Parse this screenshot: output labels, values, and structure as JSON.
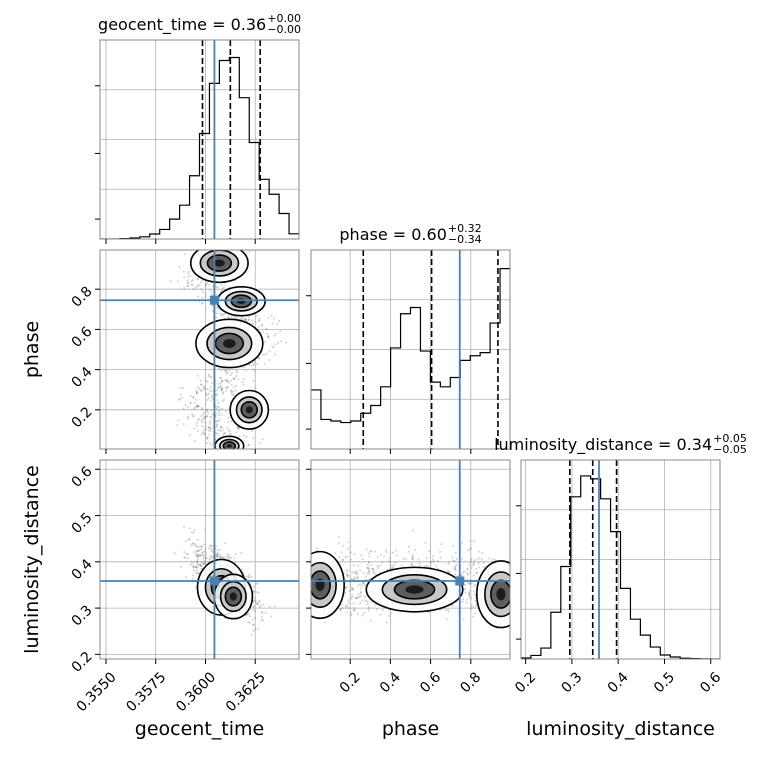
{
  "chart_data": {
    "type": "corner",
    "params": [
      "geocent_time",
      "phase",
      "luminosity_distance"
    ],
    "grid": true,
    "truth_color": "#4682b4",
    "truths": {
      "geocent_time": 0.36045,
      "phase": 0.745,
      "luminosity_distance": 0.3585
    },
    "ranges": {
      "geocent_time": [
        0.3547,
        0.3647
      ],
      "phase": [
        0.005,
        0.995
      ],
      "luminosity_distance": [
        0.19,
        0.62
      ]
    },
    "ticks": {
      "geocent_time": {
        "values": [
          0.355,
          0.3575,
          0.36,
          0.3625
        ],
        "labels": [
          "0.3550",
          "0.3575",
          "0.3600",
          "0.3625"
        ]
      },
      "phase": {
        "values": [
          0.2,
          0.4,
          0.6,
          0.8
        ],
        "labels": [
          "0.2",
          "0.4",
          "0.6",
          "0.8"
        ]
      },
      "luminosity_distance": {
        "values": [
          0.2,
          0.3,
          0.4,
          0.5,
          0.6
        ],
        "labels": [
          "0.2",
          "0.3",
          "0.4",
          "0.5",
          "0.6"
        ]
      }
    },
    "titles": [
      {
        "param": "geocent_time",
        "label": "geocent_time = 0.36",
        "plus": "+0.00",
        "minus": "−0.00"
      },
      {
        "param": "phase",
        "label": "phase = 0.60",
        "plus": "+0.32",
        "minus": "−0.34"
      },
      {
        "param": "luminosity_distance",
        "label": "luminosity_distance = 0.34",
        "plus": "+0.05",
        "minus": "−0.05"
      }
    ],
    "quantiles": {
      "geocent_time": [
        0.35985,
        0.36125,
        0.36275
      ],
      "phase": [
        0.265,
        0.605,
        0.935
      ],
      "luminosity_distance": [
        0.2955,
        0.345,
        0.3965
      ]
    },
    "histograms": {
      "geocent_time": {
        "edges": [
          0.3547,
          0.3552,
          0.3557,
          0.3562,
          0.3567,
          0.3572,
          0.3577,
          0.3582,
          0.3587,
          0.3592,
          0.3597,
          0.3602,
          0.3607,
          0.3612,
          0.3617,
          0.3622,
          0.3627,
          0.3632,
          0.3637,
          0.3642,
          0.3647
        ],
        "counts": [
          0,
          0,
          0.2,
          0.5,
          1.1,
          2.5,
          4.8,
          10.0,
          17.0,
          31.8,
          53.0,
          78.2,
          89.7,
          91.2,
          71.0,
          48.5,
          30.0,
          22.5,
          12.8,
          2.6
        ],
        "ymax": 100
      },
      "phase": {
        "edges": [
          0.005,
          0.0545,
          0.104,
          0.1535,
          0.203,
          0.2525,
          0.302,
          0.3515,
          0.401,
          0.4505,
          0.5,
          0.5495,
          0.599,
          0.6485,
          0.698,
          0.7475,
          0.797,
          0.8465,
          0.896,
          0.9455,
          0.995
        ],
        "counts": [
          19,
          9.5,
          9.0,
          8.5,
          9.0,
          11.5,
          14.0,
          20.0,
          32.5,
          43.5,
          45.5,
          31.5,
          21.5,
          20.0,
          23.0,
          28.5,
          30.0,
          31.0,
          40.5,
          58.0
        ],
        "ymax": 64
      },
      "luminosity_distance": {
        "edges": [
          0.19,
          0.2115,
          0.233,
          0.2545,
          0.276,
          0.2975,
          0.319,
          0.3405,
          0.362,
          0.3835,
          0.405,
          0.4265,
          0.448,
          0.4695,
          0.491,
          0.5125,
          0.534,
          0.5555,
          0.577,
          0.5985,
          0.62
        ],
        "counts": [
          0.5,
          1.8,
          5.5,
          23.5,
          46.5,
          81.5,
          92.0,
          90.5,
          80.5,
          64.0,
          35.5,
          20.0,
          12.0,
          6.0,
          2.0,
          1.0,
          0.4,
          0.2,
          0.1,
          0
        ],
        "ymax": 100
      }
    }
  }
}
